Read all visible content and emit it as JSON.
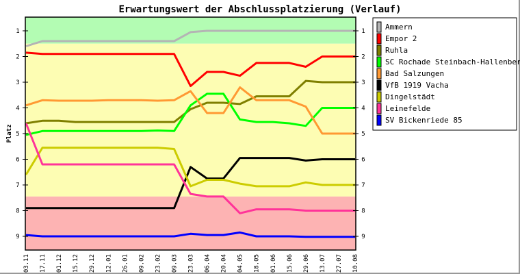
{
  "chart_data": {
    "type": "line",
    "title": "Erwartungswert der Abschlussplatzierung (Verlauf)",
    "xlabel": "",
    "ylabel": "Platz",
    "ylim": [
      1,
      9
    ],
    "y_inverted": true,
    "yticks": [
      "1",
      "2",
      "3",
      "4",
      "5",
      "6",
      "7",
      "8",
      "9"
    ],
    "legend_position": "top-right",
    "x": [
      "03.11",
      "17.11",
      "01.12",
      "15.12",
      "29.12",
      "12.01",
      "26.01",
      "09.02",
      "23.02",
      "09.03",
      "23.03",
      "06.04",
      "20.04",
      "04.05",
      "18.05",
      "01.06",
      "15.06",
      "29.06",
      "13.07",
      "27.07",
      "10.08"
    ],
    "bands": [
      {
        "from": 0.47,
        "to": 1.5,
        "color": "#b3fcb3"
      },
      {
        "from": 1.5,
        "to": 7.45,
        "color": "#fdfdb3"
      },
      {
        "from": 7.45,
        "to": 9.53,
        "color": "#fdb3b3"
      }
    ],
    "series": [
      {
        "name": "Ammern",
        "color": "#b4b4b4",
        "values": [
          1.6,
          1.4,
          1.4,
          1.4,
          1.4,
          1.4,
          1.4,
          1.4,
          1.4,
          1.4,
          1.05,
          1.0,
          1.0,
          1.0,
          1.0,
          1.0,
          1.0,
          1.0,
          1.0,
          1.0,
          1.0
        ]
      },
      {
        "name": "Empor 2",
        "color": "#ff0000",
        "values": [
          1.85,
          1.9,
          1.9,
          1.9,
          1.9,
          1.9,
          1.9,
          1.9,
          1.9,
          1.9,
          3.15,
          2.6,
          2.6,
          2.75,
          2.25,
          2.25,
          2.25,
          2.4,
          2.0,
          2.0,
          2.0
        ]
      },
      {
        "name": "Ruhla",
        "color": "#7f7f00",
        "values": [
          4.6,
          4.5,
          4.5,
          4.55,
          4.55,
          4.55,
          4.55,
          4.55,
          4.55,
          4.55,
          4.05,
          3.8,
          3.8,
          3.85,
          3.55,
          3.55,
          3.55,
          2.95,
          3.0,
          3.0,
          3.0
        ]
      },
      {
        "name": "SC Rochade Steinbach-Hallenberg",
        "color": "#00ff00",
        "values": [
          5.05,
          4.9,
          4.9,
          4.9,
          4.9,
          4.9,
          4.9,
          4.9,
          4.88,
          4.9,
          3.9,
          3.45,
          3.45,
          4.45,
          4.55,
          4.55,
          4.6,
          4.7,
          4.0,
          4.0,
          4.0
        ]
      },
      {
        "name": "Bad Salzungen",
        "color": "#ff9933",
        "values": [
          3.9,
          3.7,
          3.72,
          3.72,
          3.72,
          3.7,
          3.7,
          3.7,
          3.72,
          3.7,
          3.35,
          4.2,
          4.2,
          3.2,
          3.7,
          3.7,
          3.7,
          3.95,
          5.0,
          5.0,
          5.0
        ]
      },
      {
        "name": "VfB 1919 Vacha",
        "color": "#000000",
        "values": [
          7.9,
          7.9,
          7.9,
          7.9,
          7.9,
          7.9,
          7.9,
          7.9,
          7.9,
          7.9,
          6.3,
          6.75,
          6.75,
          5.95,
          5.95,
          5.95,
          5.95,
          6.05,
          6.0,
          6.0,
          6.0
        ]
      },
      {
        "name": "Dingelstädt",
        "color": "#cccc00",
        "values": [
          6.6,
          5.55,
          5.55,
          5.55,
          5.55,
          5.55,
          5.55,
          5.55,
          5.55,
          5.6,
          7.05,
          6.8,
          6.8,
          6.95,
          7.05,
          7.05,
          7.05,
          6.9,
          7.0,
          7.0,
          7.0
        ]
      },
      {
        "name": "Leinefelde",
        "color": "#ff3399",
        "values": [
          4.6,
          6.2,
          6.2,
          6.2,
          6.2,
          6.2,
          6.2,
          6.2,
          6.2,
          6.2,
          7.35,
          7.45,
          7.45,
          8.1,
          7.95,
          7.95,
          7.95,
          8.0,
          8.0,
          8.0,
          8.0
        ]
      },
      {
        "name": "SV Bickenriede 85",
        "color": "#0000ff",
        "values": [
          8.95,
          9.0,
          9.0,
          9.0,
          9.0,
          9.0,
          9.0,
          9.0,
          9.0,
          9.0,
          8.9,
          8.95,
          8.95,
          8.85,
          9.0,
          9.0,
          9.0,
          9.02,
          9.02,
          9.02,
          9.02
        ]
      }
    ]
  }
}
